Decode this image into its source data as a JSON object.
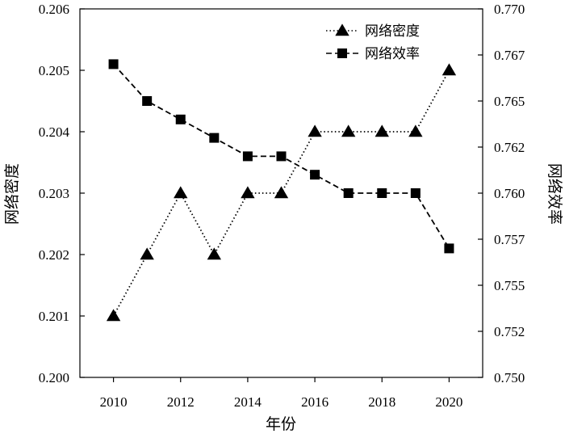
{
  "chart_data": {
    "type": "line",
    "x": [
      2010,
      2011,
      2012,
      2013,
      2014,
      2015,
      2016,
      2017,
      2018,
      2019,
      2020
    ],
    "xlabel": "年份",
    "xlim": [
      2009,
      2021
    ],
    "x_ticks": [
      "2010",
      "2012",
      "2014",
      "2016",
      "2018",
      "2020"
    ],
    "ylabel_left": "网络密度",
    "ylim_left": [
      0.2,
      0.206
    ],
    "y_ticks_left": [
      "0.200",
      "0.201",
      "0.202",
      "0.203",
      "0.204",
      "0.205",
      "0.206"
    ],
    "ylabel_right": "网络效率",
    "ylim_right": [
      0.75,
      0.77
    ],
    "y_ticks_right": [
      "0.750",
      "0.752",
      "0.755",
      "0.757",
      "0.760",
      "0.762",
      "0.765",
      "0.767",
      "0.770"
    ],
    "legend_position": "top-right",
    "series": [
      {
        "name": "网络密度",
        "axis": "left",
        "marker": "triangle",
        "line_style": "dotted",
        "values": [
          0.201,
          0.202,
          0.203,
          0.202,
          0.203,
          0.203,
          0.204,
          0.204,
          0.204,
          0.204,
          0.205
        ]
      },
      {
        "name": "网络效率",
        "axis": "right",
        "marker": "square",
        "line_style": "dashed",
        "values": [
          0.767,
          0.765,
          0.764,
          0.763,
          0.762,
          0.762,
          0.761,
          0.76,
          0.76,
          0.76,
          0.757
        ]
      }
    ],
    "colors": {
      "line": "#000000",
      "marker": "#000000"
    }
  }
}
